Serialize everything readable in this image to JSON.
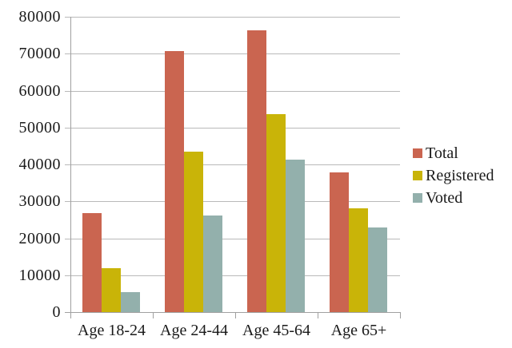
{
  "chart_data": {
    "type": "bar",
    "title": "",
    "xlabel": "",
    "ylabel": "",
    "categories": [
      "Age 18-24",
      "Age 24-44",
      "Age 45-64",
      "Age 65+"
    ],
    "series": [
      {
        "name": "Total",
        "color": "#CA6550",
        "values": [
          26800,
          70800,
          76300,
          37800
        ]
      },
      {
        "name": "Registered",
        "color": "#C9B408",
        "values": [
          12000,
          43400,
          53600,
          28100
        ]
      },
      {
        "name": "Voted",
        "color": "#93B0AC",
        "values": [
          5400,
          26200,
          41200,
          22900
        ]
      }
    ],
    "ylim": [
      0,
      80000
    ],
    "ytick_step": 10000,
    "ytick_labels": [
      "0",
      "10000",
      "20000",
      "30000",
      "40000",
      "50000",
      "60000",
      "70000",
      "80000"
    ],
    "grid": true,
    "legend_position": "right"
  },
  "colors": {
    "background": "#FFFFFF",
    "gridline": "#B9B9B9",
    "axis": "#A0A0A0",
    "text": "#1A1A1A"
  }
}
